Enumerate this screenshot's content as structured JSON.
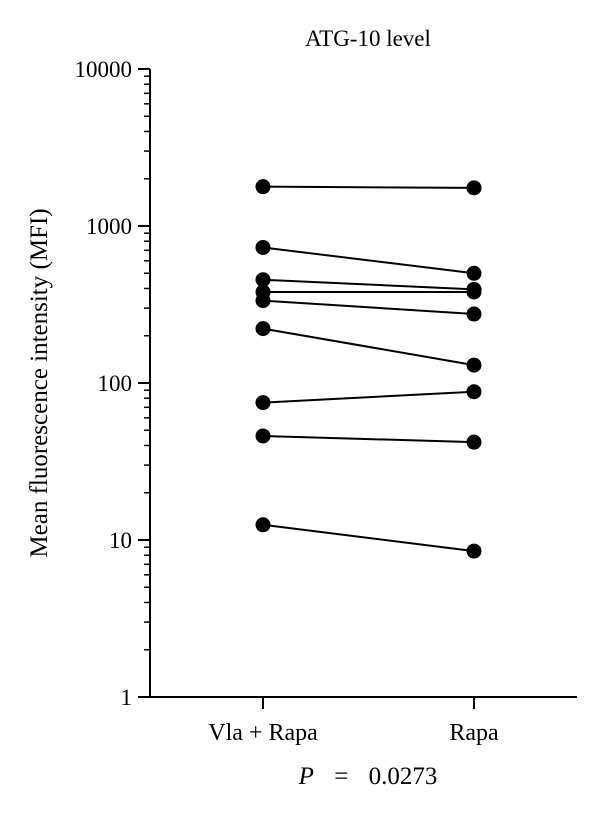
{
  "chart_data": {
    "type": "scatter",
    "title": "ATG-10 level",
    "ylabel": "Mean fluorescence intensity (MFI)",
    "xlabel": "",
    "y_scale": "log",
    "ylim": [
      1,
      10000
    ],
    "categories": [
      "Vla + Rapa",
      "Rapa"
    ],
    "y_ticks": [
      "1",
      "10",
      "100",
      "1000",
      "10000"
    ],
    "grid": false,
    "legend": "none",
    "style": "paired points joined by lines",
    "annotation": {
      "p_label": "P",
      "equals": "=",
      "p_value": "0.0273"
    },
    "pairs": [
      [
        1780,
        1750
      ],
      [
        730,
        500
      ],
      [
        455,
        395
      ],
      [
        380,
        380
      ],
      [
        335,
        275
      ],
      [
        222,
        130
      ],
      [
        75,
        88
      ],
      [
        46,
        42
      ],
      [
        12.5,
        8.5
      ]
    ],
    "point_color": "#000000",
    "line_color": "#000000"
  }
}
